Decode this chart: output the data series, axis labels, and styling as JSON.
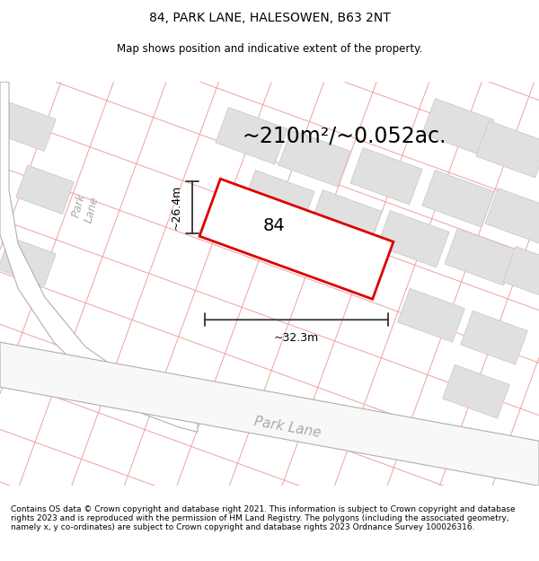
{
  "title": "84, PARK LANE, HALESOWEN, B63 2NT",
  "subtitle": "Map shows position and indicative extent of the property.",
  "area_text": "~210m²/~0.052ac.",
  "number_label": "84",
  "dim1_label": "~26.4m",
  "dim2_label": "~32.3m",
  "footer": "Contains OS data © Crown copyright and database right 2021. This information is subject to Crown copyright and database rights 2023 and is reproduced with the permission of HM Land Registry. The polygons (including the associated geometry, namely x, y co-ordinates) are subject to Crown copyright and database rights 2023 Ordnance Survey 100026316.",
  "bg_color": "#ffffff",
  "map_bg": "#ffffff",
  "property_fill": "#ffffff",
  "property_edge": "#dd0000",
  "building_fill": "#e0e0e0",
  "building_edge": "#cccccc",
  "road_line_color": "#f0a0a0",
  "road_edge_color": "#b0b0b0",
  "road_text_color": "#aaaaaa",
  "title_fontsize": 10,
  "subtitle_fontsize": 8.5,
  "area_fontsize": 17,
  "label_fontsize": 14,
  "dim_fontsize": 9,
  "footer_fontsize": 6.5
}
